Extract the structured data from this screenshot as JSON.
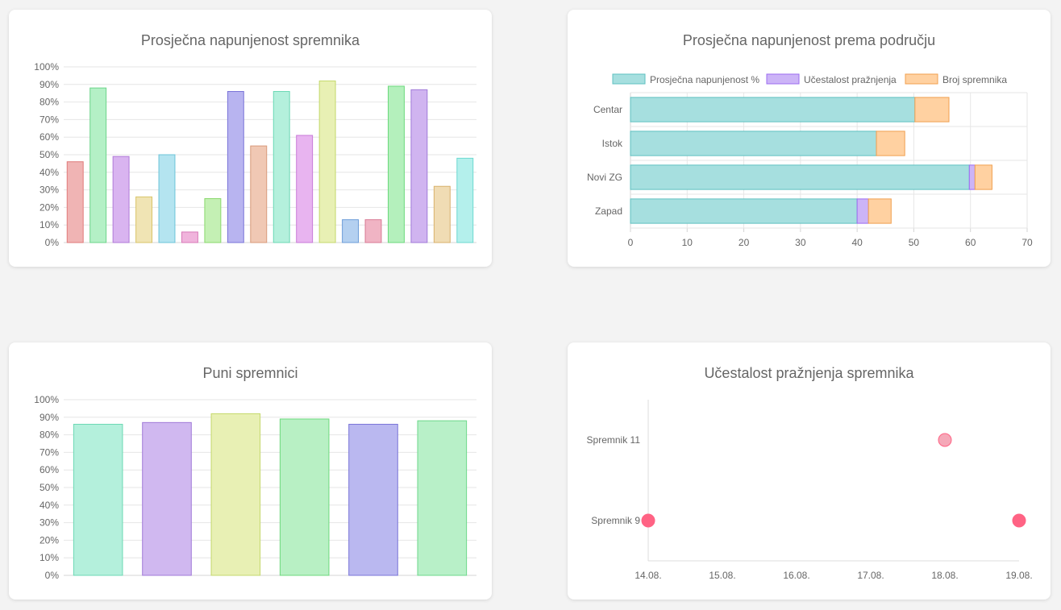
{
  "chart_data": [
    {
      "id": "fill",
      "type": "bar",
      "title": "Prosječna napunjenost spremnika",
      "ylim": [
        0,
        100
      ],
      "y_ticks": [
        "0%",
        "10%",
        "20%",
        "30%",
        "40%",
        "50%",
        "60%",
        "70%",
        "80%",
        "90%",
        "100%"
      ],
      "values": [
        46,
        88,
        49,
        26,
        50,
        6,
        25,
        86,
        55,
        86,
        61,
        92,
        13,
        13,
        89,
        87,
        32,
        48
      ],
      "colors": [
        "#f0b4b4",
        "#b4f0c6",
        "#d9b4f0",
        "#f0e4b4",
        "#b4e4f0",
        "#f0b4dc",
        "#c4f0b4",
        "#b8b4f0",
        "#f0c8b4",
        "#b4f0dc",
        "#e8b4f0",
        "#e8f0b4",
        "#b4d0f0",
        "#f0b4c4",
        "#b4f0bc",
        "#d0b4f0",
        "#f0dcb4",
        "#b4f0ec"
      ],
      "borders": [
        "#e07a7a",
        "#6cd48a",
        "#b07ad8",
        "#d8c46a",
        "#6cc4d8",
        "#d87ab8",
        "#8ad86c",
        "#7a74d8",
        "#d89a7a",
        "#6cd8b4",
        "#c87ad8",
        "#c4d86c",
        "#6c9cd8",
        "#d87a94",
        "#6cd87c",
        "#a07ad8",
        "#d8b06c",
        "#6cd8d0"
      ],
      "grid": true
    },
    {
      "id": "area",
      "type": "bar",
      "orientation": "horizontal",
      "stacked": true,
      "title": "Prosječna napunjenost prema području",
      "categories": [
        "Centar",
        "Istok",
        "Novi ZG",
        "Zapad"
      ],
      "xlim": [
        0,
        70
      ],
      "x_ticks": [
        "0",
        "10",
        "20",
        "30",
        "40",
        "50",
        "60",
        "70"
      ],
      "legend_position": "top",
      "series": [
        {
          "name": "Prosječna napunjenost %",
          "values": [
            50.2,
            43.4,
            59.8,
            40
          ],
          "color": "#a6dfdf",
          "border": "#5fc0c0"
        },
        {
          "name": "Učestalost pražnjenja",
          "values": [
            0,
            0,
            1,
            2
          ],
          "color": "#ccb4f7",
          "border": "#9b6cf0"
        },
        {
          "name": "Broj spremnika",
          "values": [
            6,
            5,
            3,
            4
          ],
          "color": "#ffd1a1",
          "border": "#f0a050"
        }
      ],
      "grid": true
    },
    {
      "id": "full",
      "type": "bar",
      "title": "Puni spremnici",
      "ylim": [
        0,
        100
      ],
      "y_ticks": [
        "0%",
        "10%",
        "20%",
        "30%",
        "40%",
        "50%",
        "60%",
        "70%",
        "80%",
        "90%",
        "100%"
      ],
      "values": [
        86,
        87,
        92,
        89,
        86,
        88
      ],
      "colors": [
        "#b4f0dc",
        "#d0b8f0",
        "#e8f0b4",
        "#b8f0c4",
        "#bab8f0",
        "#b8f0c8"
      ],
      "borders": [
        "#6cd8b4",
        "#a07ad8",
        "#c4d86c",
        "#6cd87c",
        "#7a74d8",
        "#6cd88a"
      ],
      "grid": true
    },
    {
      "id": "freq",
      "type": "scatter",
      "title": "Učestalost pražnjenja spremnika",
      "x_categories": [
        "14.08.",
        "15.08.",
        "16.08.",
        "17.08.",
        "18.08.",
        "19.08."
      ],
      "y_categories": [
        "Spremnik 11",
        "Spremnik 9"
      ],
      "points": [
        {
          "x": "18.08.",
          "y": "Spremnik 11",
          "color": "#f5a8b8",
          "border": "#ff6384"
        },
        {
          "x": "14.08.",
          "y": "Spremnik 9",
          "color": "#ff6384",
          "border": "#ff6384"
        },
        {
          "x": "19.08.",
          "y": "Spremnik 9",
          "color": "#ff6384",
          "border": "#ff6384"
        }
      ],
      "grid": false
    }
  ]
}
